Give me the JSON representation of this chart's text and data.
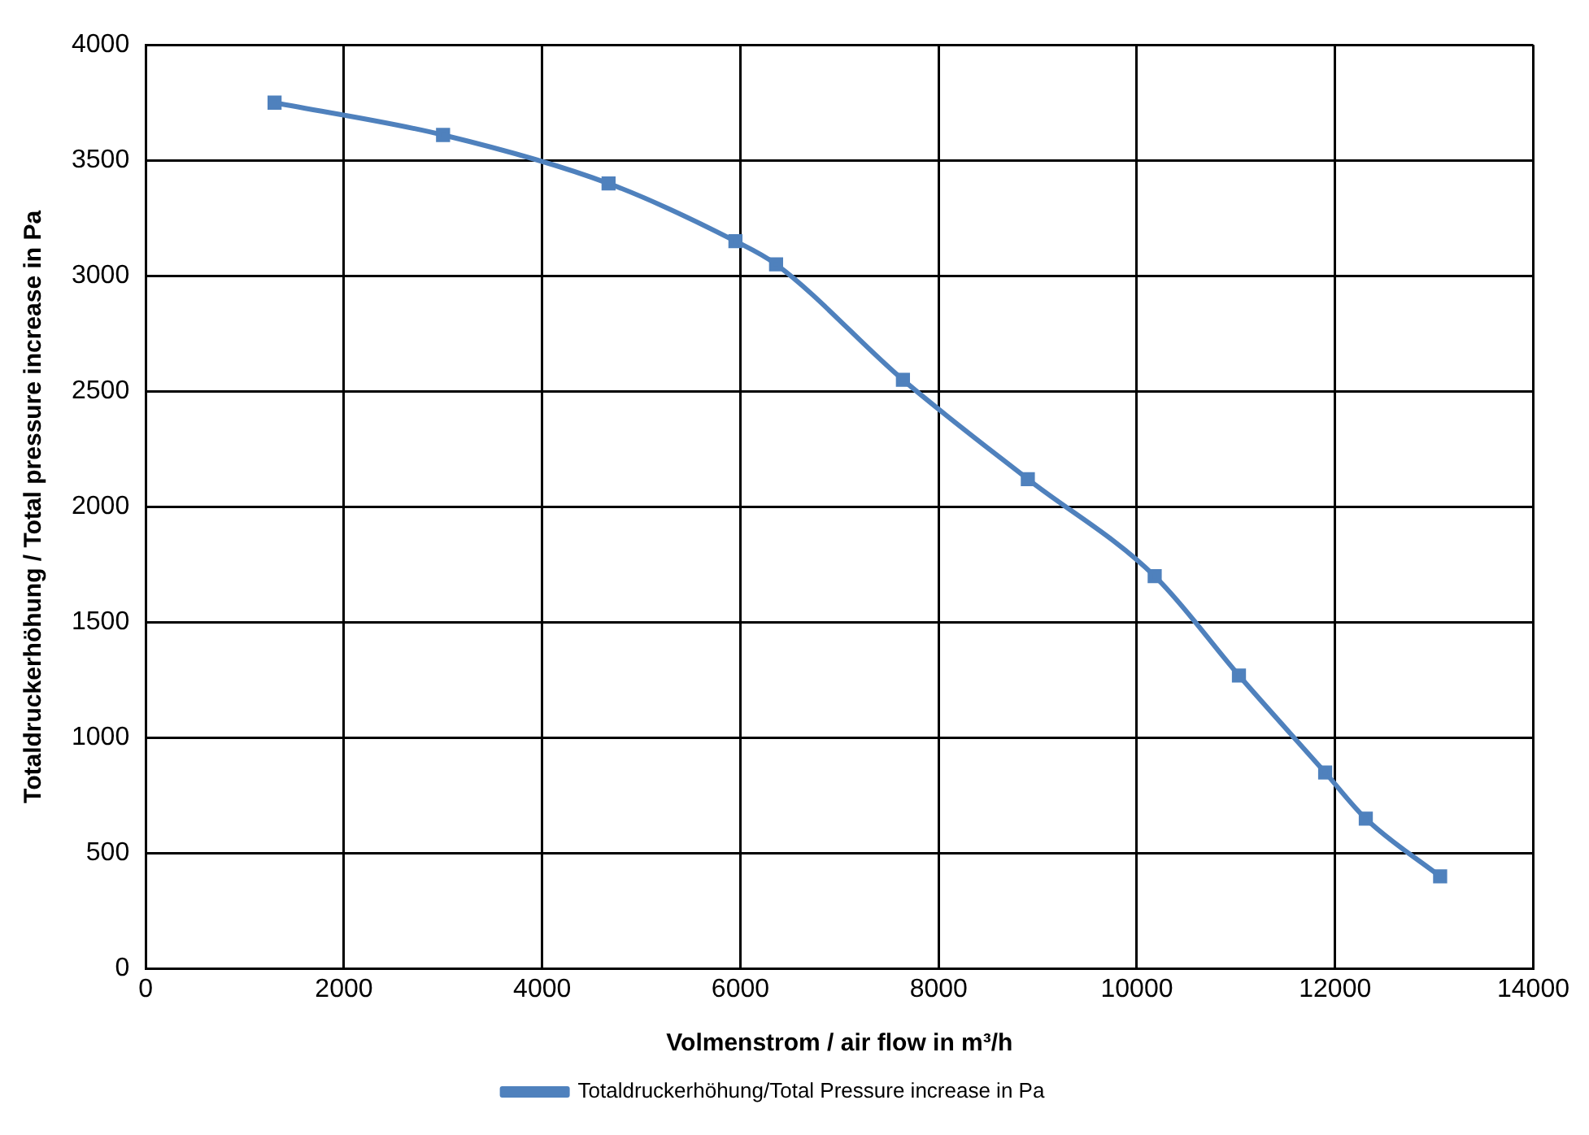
{
  "chart_data": {
    "type": "line",
    "xlabel": "Volmenstrom / air flow in m³/h",
    "ylabel": "Totaldruckerhöhung / Total pressure increase in Pa",
    "xlim": [
      0,
      14000
    ],
    "xticks": [
      0,
      2000,
      4000,
      6000,
      8000,
      10000,
      12000,
      14000
    ],
    "ylim": [
      0,
      4000
    ],
    "yticks": [
      0,
      500,
      1000,
      1500,
      2000,
      2500,
      3000,
      3500,
      4000
    ],
    "grid": true,
    "legend": "bottom",
    "marker": "square",
    "line_style": "solid",
    "series": [
      {
        "name": "Totaldruckerhöhung/Total Pressure increase in Pa",
        "color": "#4f81bd",
        "x": [
          1300,
          3000,
          4670,
          5950,
          6360,
          7640,
          8900,
          10180,
          11030,
          11900,
          12310,
          13060
        ],
        "values": [
          3750,
          3610,
          3400,
          3150,
          3050,
          2550,
          2120,
          1700,
          1270,
          850,
          650,
          400
        ]
      }
    ]
  }
}
